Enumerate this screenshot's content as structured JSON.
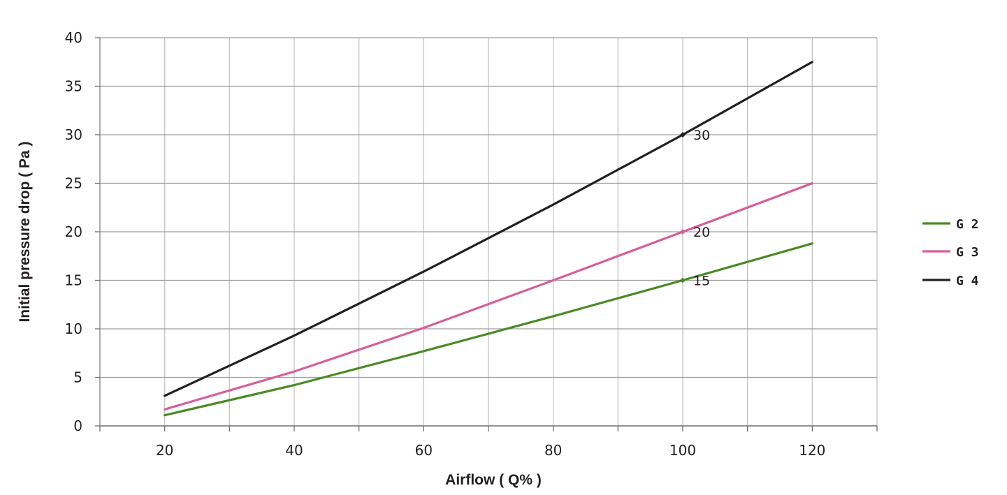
{
  "chart_data": {
    "type": "line",
    "title": "",
    "xlabel": "Airflow ( Q% )",
    "ylabel": "Initial pressure drop ( Pa )",
    "xlim": [
      10,
      130
    ],
    "ylim": [
      0,
      40
    ],
    "x_ticks": [
      20,
      40,
      60,
      80,
      100,
      120
    ],
    "y_ticks": [
      0,
      5,
      10,
      15,
      20,
      25,
      30,
      35,
      40
    ],
    "grid": true,
    "legend_position": "right",
    "x": [
      20,
      40,
      60,
      80,
      100,
      120
    ],
    "series": [
      {
        "name": "G2",
        "color": "#4a8a24",
        "values": [
          1.1,
          4.2,
          7.7,
          11.3,
          15,
          18.8
        ]
      },
      {
        "name": "G3",
        "color": "#d85e98",
        "values": [
          1.7,
          5.6,
          10.1,
          15,
          20,
          25
        ]
      },
      {
        "name": "G4",
        "color": "#231f20",
        "values": [
          3.1,
          9.3,
          15.9,
          22.8,
          30,
          37.5
        ]
      }
    ],
    "data_labels": [
      {
        "series": "G4",
        "x": 100,
        "y": 30,
        "text": "30"
      },
      {
        "series": "G3",
        "x": 100,
        "y": 20,
        "text": "20"
      },
      {
        "series": "G2",
        "x": 100,
        "y": 15,
        "text": "15"
      }
    ],
    "legend": [
      {
        "label": "G 2",
        "color": "#4a8a24"
      },
      {
        "label": "G 3",
        "color": "#d85e98"
      },
      {
        "label": "G 4",
        "color": "#231f20"
      }
    ]
  }
}
